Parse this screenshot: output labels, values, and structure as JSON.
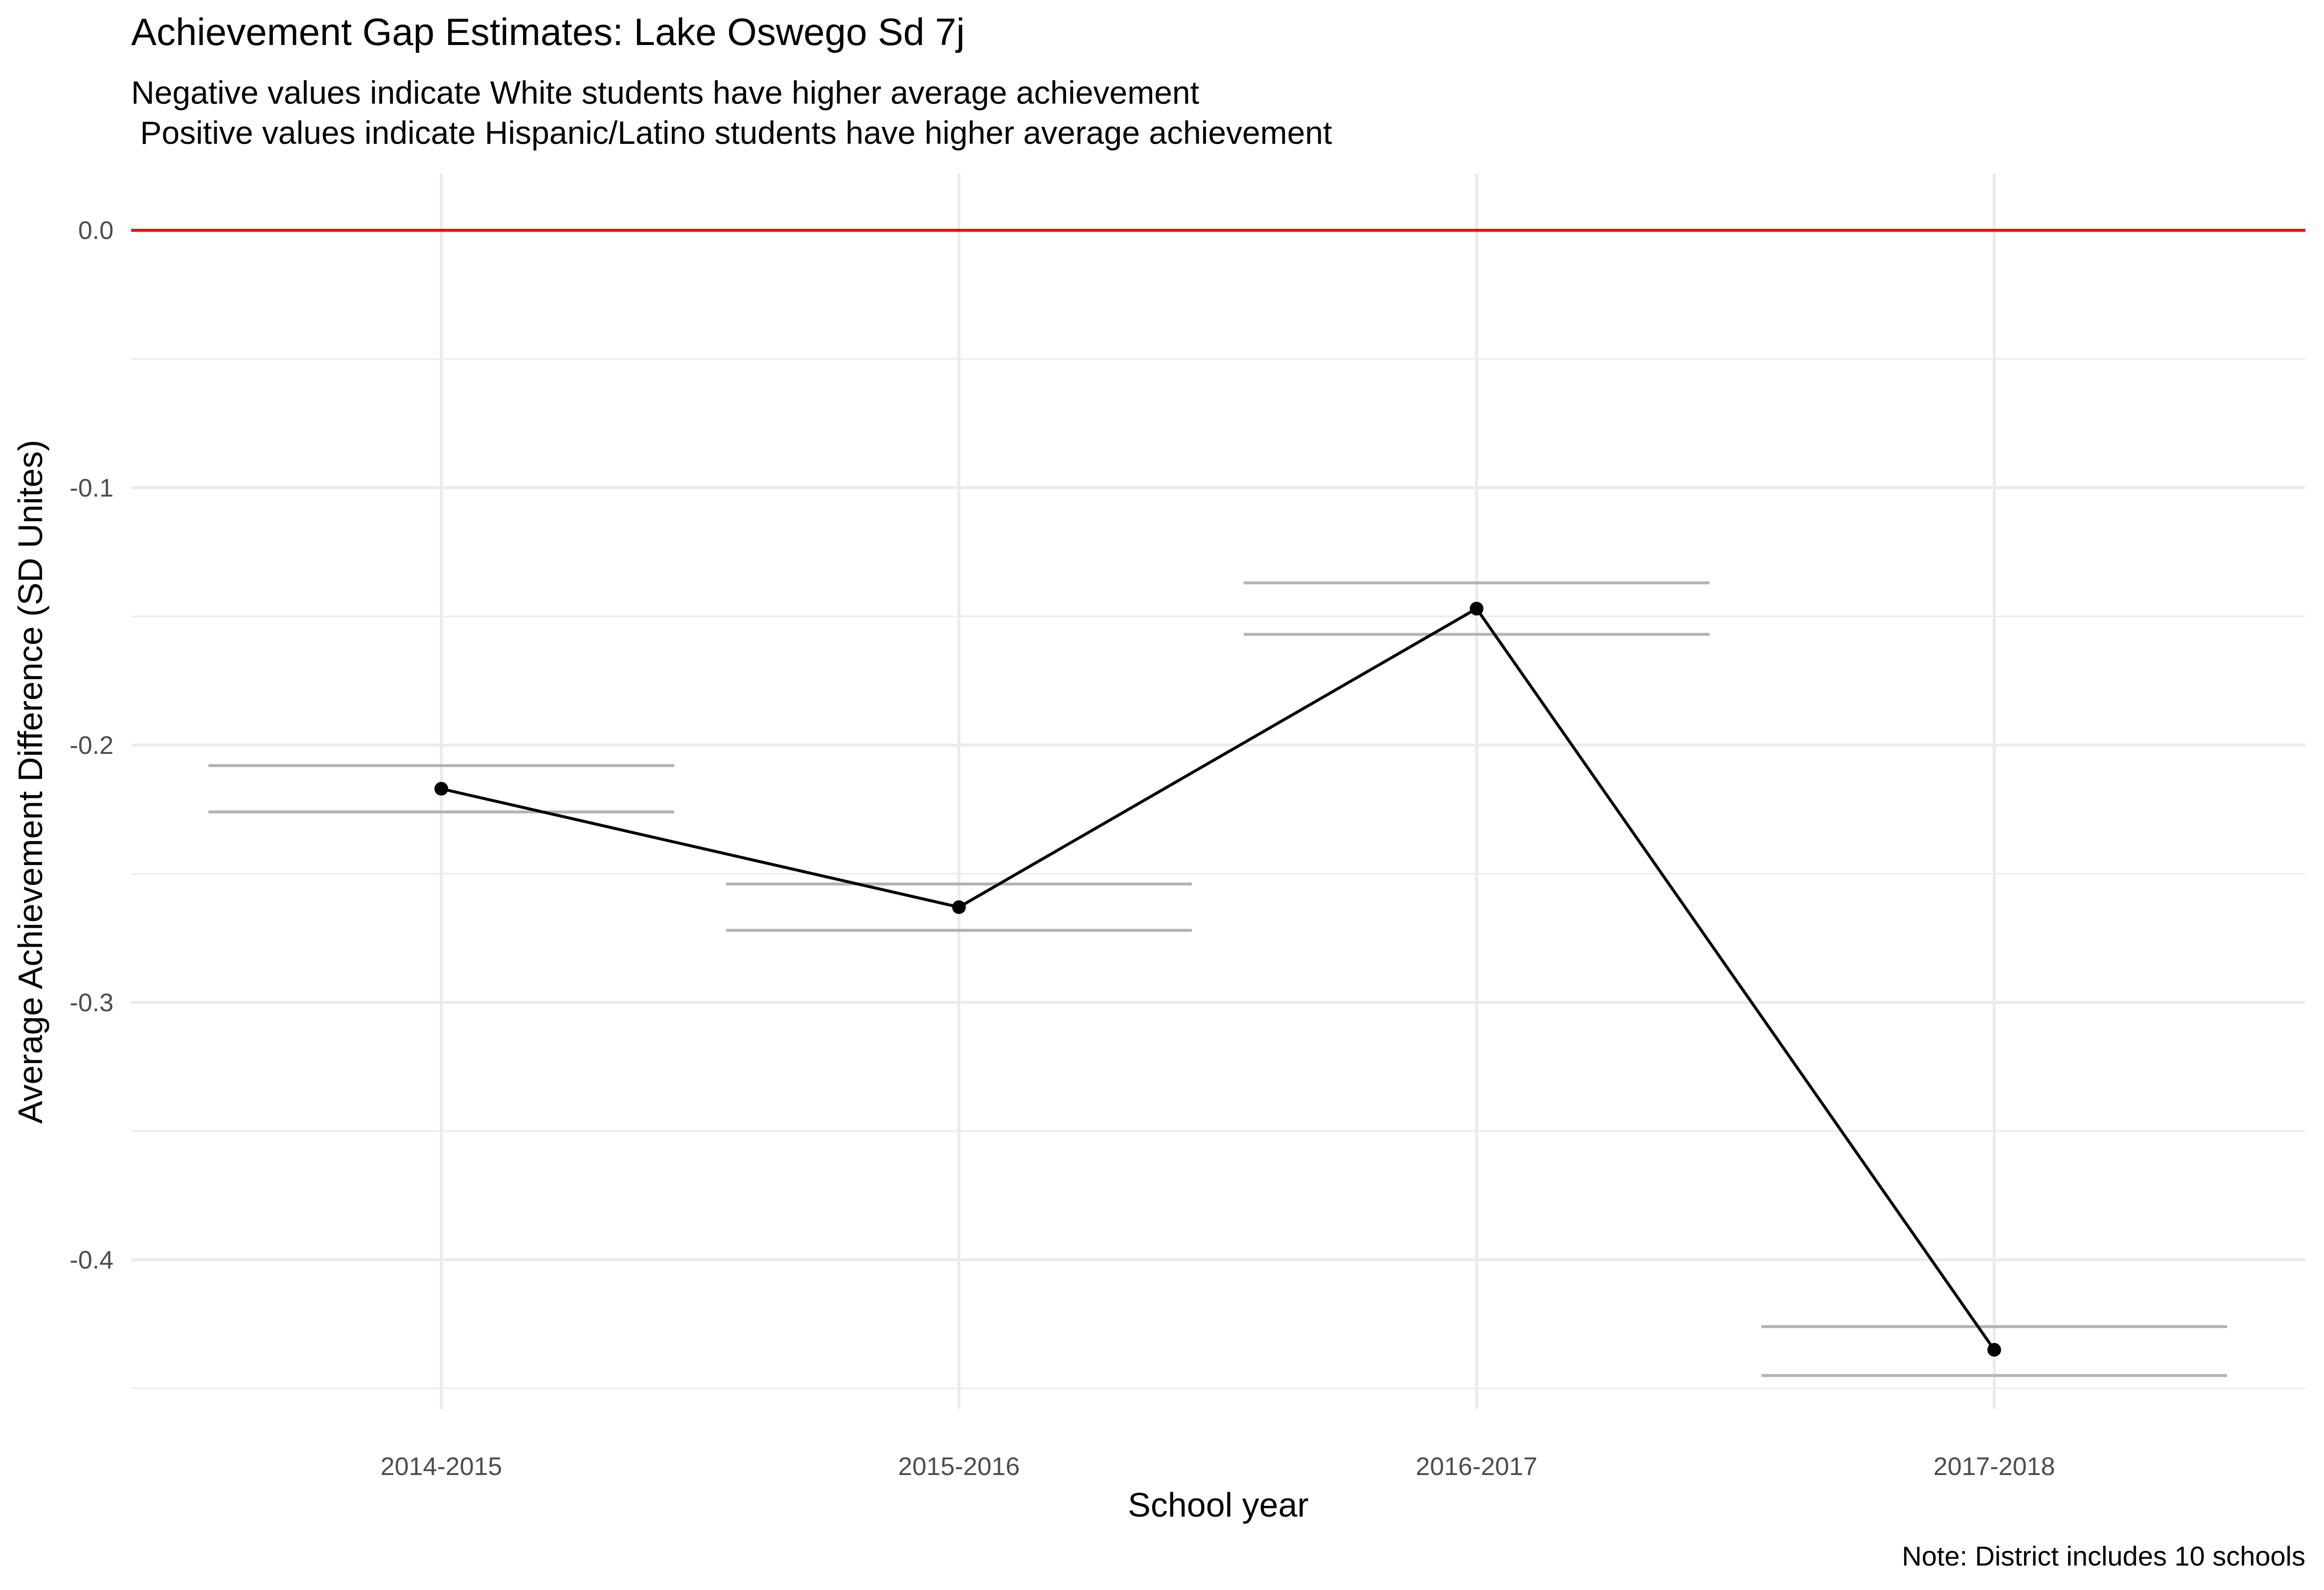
{
  "colors": {
    "background": "#ffffff",
    "grid": "#ebebeb",
    "reference_line": "#ff0000",
    "line": "#000000",
    "point": "#000000",
    "interval": "#b3b3b3",
    "text": "#000000",
    "tick_text": "#4d4d4d"
  },
  "chart_data": {
    "type": "line",
    "title": "Achievement Gap Estimates: Lake Oswego Sd 7j",
    "subtitle_lines": [
      "Negative values indicate White students have higher average achievement",
      " Positive values indicate Hispanic/Latino students have higher average achievement"
    ],
    "xlabel": "School year",
    "ylabel": "Average Achievement Difference (SD Unites)",
    "caption": "Note: District includes 10 schools",
    "categories": [
      "2014-2015",
      "2015-2016",
      "2016-2017",
      "2017-2018"
    ],
    "series": [
      {
        "values": [
          -0.217,
          -0.263,
          -0.147,
          -0.435
        ],
        "lower": [
          -0.226,
          -0.272,
          -0.157,
          -0.445
        ],
        "upper": [
          -0.208,
          -0.254,
          -0.137,
          -0.426
        ]
      }
    ],
    "reference_line": 0.0,
    "ylim": [
      -0.458,
      0.022
    ],
    "y_ticks": [
      0.0,
      -0.1,
      -0.2,
      -0.3,
      -0.4
    ],
    "y_tick_labels": [
      "0.0",
      "-0.1",
      "-0.2",
      "-0.3",
      "-0.4"
    ],
    "y_minor_ticks": [
      -0.05,
      -0.15,
      -0.25,
      -0.35,
      -0.45
    ],
    "grid": true,
    "legend": "none"
  }
}
